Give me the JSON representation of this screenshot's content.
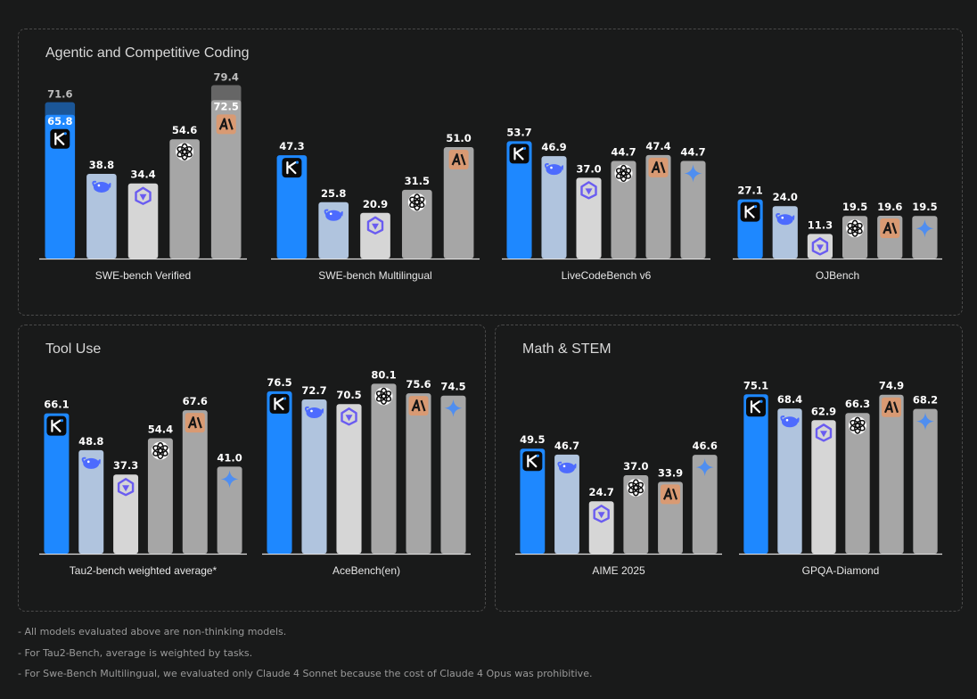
{
  "panels": [
    {
      "id": "p1",
      "title": "Agentic and Competitive Coding"
    },
    {
      "id": "p2",
      "title": "Tool Use"
    },
    {
      "id": "p3",
      "title": "Math & STEM"
    }
  ],
  "models": [
    {
      "name": "Kimi K2",
      "icon": "kimi-icon",
      "color": "#1e88ff"
    },
    {
      "name": "DeepSeek",
      "icon": "deepseek-icon",
      "color": "#b0c4de"
    },
    {
      "name": "Qwen",
      "icon": "qwen-icon",
      "color": "#d6d6d6"
    },
    {
      "name": "OpenAI",
      "icon": "openai-icon",
      "color": "#a6a6a6"
    },
    {
      "name": "Claude",
      "icon": "claude-icon",
      "color": "#a6a6a6"
    },
    {
      "name": "Gemini",
      "icon": "gemini-icon",
      "color": "#a6a6a6"
    }
  ],
  "chart_data": [
    {
      "type": "bar",
      "panel": "p1",
      "title": "SWE-bench Verified",
      "ylim": [
        0,
        100
      ],
      "values": [
        65.8,
        38.8,
        34.4,
        54.6,
        72.5
      ],
      "models": [
        0,
        1,
        2,
        3,
        4
      ],
      "extra": [
        {
          "model": 0,
          "value": 71.6
        },
        {
          "model": 4,
          "value": 79.4
        }
      ]
    },
    {
      "type": "bar",
      "panel": "p1",
      "title": "SWE-bench Multilingual",
      "ylim": [
        0,
        100
      ],
      "values": [
        47.3,
        25.8,
        20.9,
        31.5,
        51.0
      ],
      "models": [
        0,
        1,
        2,
        3,
        4
      ]
    },
    {
      "type": "bar",
      "panel": "p1",
      "title": "LiveCodeBench v6",
      "ylim": [
        0,
        100
      ],
      "values": [
        53.7,
        46.9,
        37.0,
        44.7,
        47.4,
        44.7
      ],
      "models": [
        0,
        1,
        2,
        3,
        4,
        5
      ]
    },
    {
      "type": "bar",
      "panel": "p1",
      "title": "OJBench",
      "ylim": [
        0,
        100
      ],
      "values": [
        27.1,
        24.0,
        11.3,
        19.5,
        19.6,
        19.5
      ],
      "models": [
        0,
        1,
        2,
        3,
        4,
        5
      ]
    },
    {
      "type": "bar",
      "panel": "p2",
      "title": "Tau2-bench weighted average*",
      "ylim": [
        0,
        100
      ],
      "values": [
        66.1,
        48.8,
        37.3,
        54.4,
        67.6,
        41.0
      ],
      "models": [
        0,
        1,
        2,
        3,
        4,
        5
      ]
    },
    {
      "type": "bar",
      "panel": "p2",
      "title": "AceBench(en)",
      "ylim": [
        0,
        100
      ],
      "values": [
        76.5,
        72.7,
        70.5,
        80.1,
        75.6,
        74.5
      ],
      "models": [
        0,
        1,
        2,
        3,
        4,
        5
      ]
    },
    {
      "type": "bar",
      "panel": "p3",
      "title": "AIME 2025",
      "ylim": [
        0,
        100
      ],
      "values": [
        49.5,
        46.7,
        24.7,
        37.0,
        33.9,
        46.6
      ],
      "models": [
        0,
        1,
        2,
        3,
        4,
        5
      ]
    },
    {
      "type": "bar",
      "panel": "p3",
      "title": "GPQA-Diamond",
      "ylim": [
        0,
        100
      ],
      "values": [
        75.1,
        68.4,
        62.9,
        66.3,
        74.9,
        68.2
      ],
      "models": [
        0,
        1,
        2,
        3,
        4,
        5
      ]
    }
  ],
  "footnotes": [
    "- All models evaluated above are non-thinking models.",
    "- For Tau2-Bench, average is weighted by tasks.",
    "- For Swe-Bench Multilingual, we evaluated only Claude 4 Sonnet because the cost of Claude 4 Opus was prohibitive."
  ]
}
